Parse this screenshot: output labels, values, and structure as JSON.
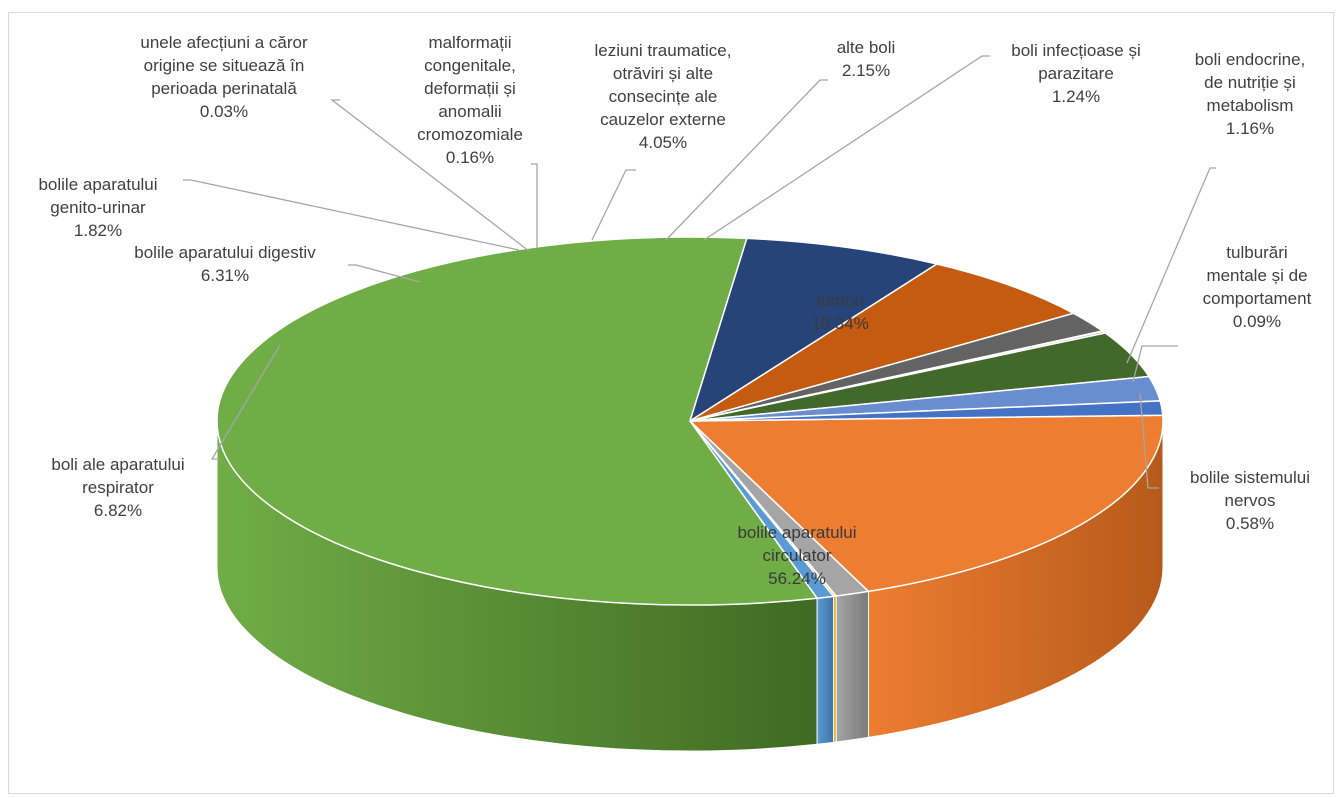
{
  "chart_data": {
    "type": "pie",
    "variant": "3d",
    "title": "",
    "value_unit": "%",
    "slices": [
      {
        "label_lines": [
          "tumori"
        ],
        "value": 19.34,
        "value_label": "19.34%",
        "color": "#ed7d31",
        "side_color": "#b65a1b"
      },
      {
        "label_lines": [
          "boli endocrine,",
          "de nutriție și",
          "metabolism"
        ],
        "value": 1.16,
        "value_label": "1.16%",
        "color": "#a5a5a5",
        "side_color": "#7a7a7a"
      },
      {
        "label_lines": [
          "tulburări",
          "mentale și de",
          "comportament"
        ],
        "value": 0.09,
        "value_label": "0.09%",
        "color": "#ffc000",
        "side_color": "#c09000"
      },
      {
        "label_lines": [
          "bolile sistemului",
          "nervos"
        ],
        "value": 0.58,
        "value_label": "0.58%",
        "color": "#5b9bd5",
        "side_color": "#3f73a3"
      },
      {
        "label_lines": [
          "bolile aparatului",
          "circulator"
        ],
        "value": 56.24,
        "value_label": "56.24%",
        "color": "#70ad47",
        "side_color": "#3f6a22"
      },
      {
        "label_lines": [
          "boli ale aparatului",
          "respirator"
        ],
        "value": 6.82,
        "value_label": "6.82%",
        "color": "#264478",
        "side_color": "#18305a"
      },
      {
        "label_lines": [
          "bolile aparatului digestiv"
        ],
        "value": 6.31,
        "value_label": "6.31%",
        "color": "#c55a11",
        "side_color": "#8a3e0b"
      },
      {
        "label_lines": [
          "bolile aparatului",
          "genito-urinar"
        ],
        "value": 1.82,
        "value_label": "1.82%",
        "color": "#636363",
        "side_color": "#444444"
      },
      {
        "label_lines": [
          "unele afecțiuni a căror",
          "origine se situează în",
          "perioada perinatală"
        ],
        "value": 0.03,
        "value_label": "0.03%",
        "color": "#997300",
        "side_color": "#6f5300"
      },
      {
        "label_lines": [
          "malformații",
          "congenitale,",
          "deformații și",
          "anomalii",
          "cromozomiale"
        ],
        "value": 0.16,
        "value_label": "0.16%",
        "color": "#a5a5a5",
        "side_color": "#7a7a7a"
      },
      {
        "label_lines": [
          "leziuni traumatice,",
          "otrăviri și alte",
          "consecințe ale",
          "cauzelor externe"
        ],
        "value": 4.05,
        "value_label": "4.05%",
        "color": "#43682b",
        "side_color": "#2c4a1a"
      },
      {
        "label_lines": [
          "alte boli"
        ],
        "value": 2.15,
        "value_label": "2.15%",
        "color": "#698ed0",
        "side_color": "#4a6aa5"
      },
      {
        "label_lines": [
          "boli infecțioase și",
          "parazitare"
        ],
        "value": 1.24,
        "value_label": "1.24%",
        "color": "#4472c4",
        "side_color": "#2f5597"
      }
    ]
  }
}
